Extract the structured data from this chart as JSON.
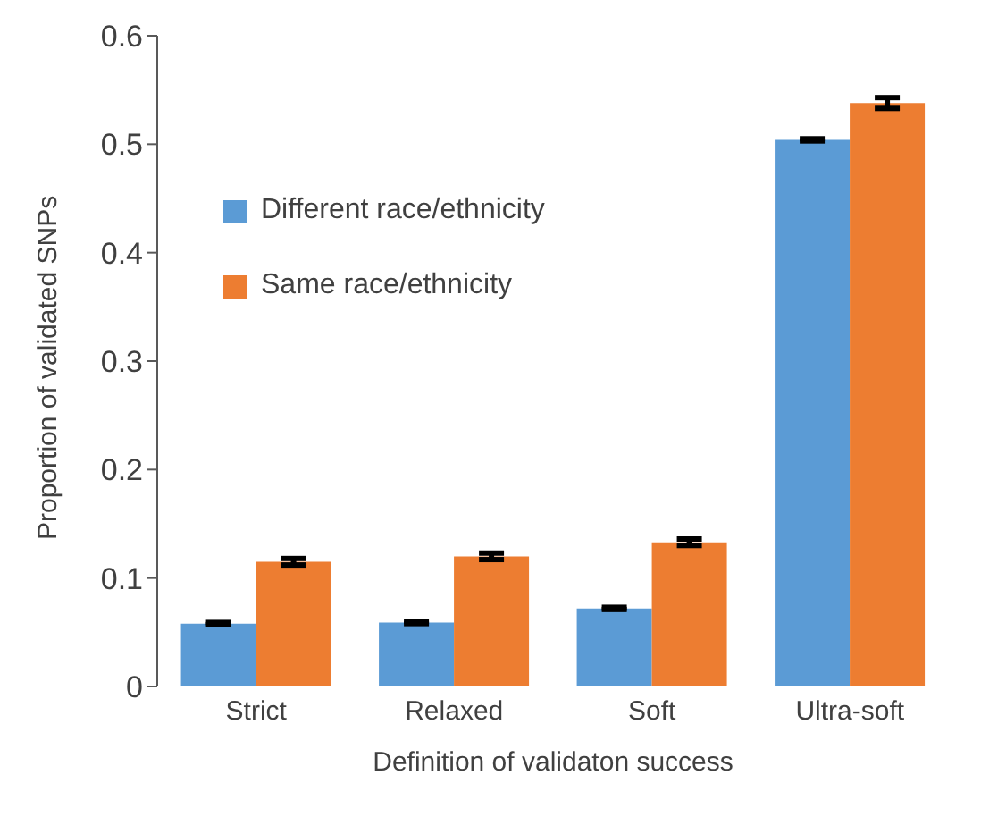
{
  "chart_data": {
    "type": "bar",
    "xlabel": "Definition of validaton success",
    "ylabel": "Proportion of validated SNPs",
    "categories": [
      "Strict",
      "Relaxed",
      "Soft",
      "Ultra-soft"
    ],
    "series": [
      {
        "name": "Different race/ethnicity",
        "color": "#5b9bd5",
        "values": [
          0.058,
          0.059,
          0.072,
          0.504
        ],
        "errors": [
          0.001,
          0.001,
          0.001,
          0.001
        ]
      },
      {
        "name": "Same race/ethnicity",
        "color": "#ed7d31",
        "values": [
          0.115,
          0.12,
          0.133,
          0.538
        ],
        "errors": [
          0.003,
          0.003,
          0.003,
          0.005
        ]
      }
    ],
    "ylim": [
      0,
      0.6
    ],
    "yticks": [
      0,
      0.1,
      0.2,
      0.3,
      0.4,
      0.5,
      0.6
    ],
    "grid": false,
    "legend": "top left"
  }
}
